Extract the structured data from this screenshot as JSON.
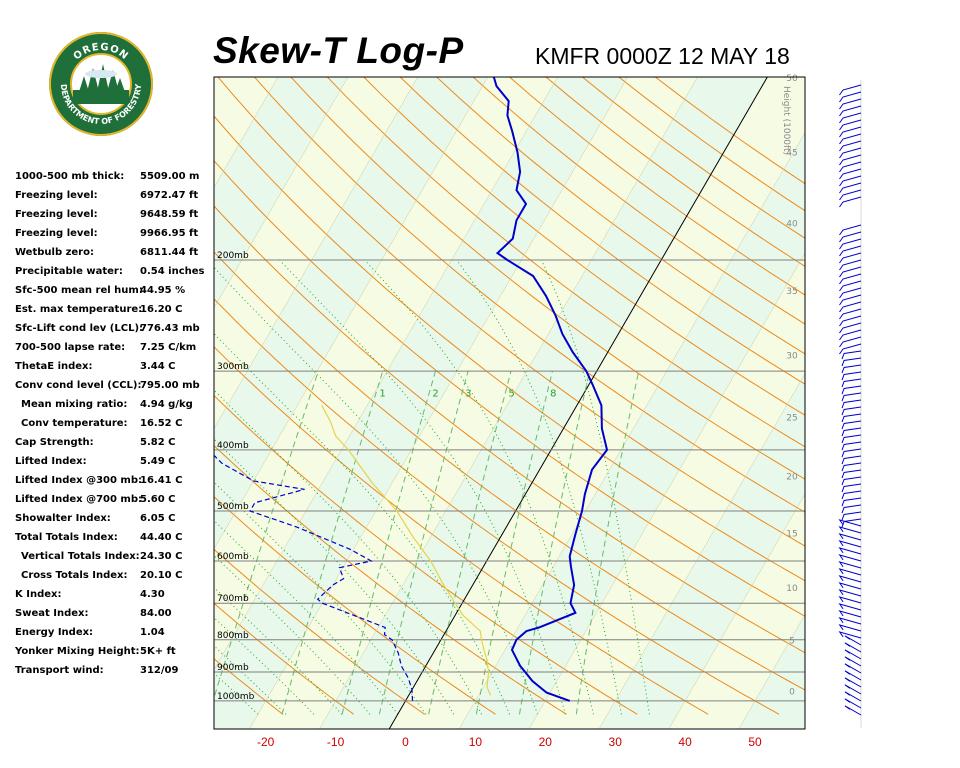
{
  "header": {
    "title": "Skew-T Log-P",
    "station_time": "KMFR 0000Z 12 MAY 18"
  },
  "logo": {
    "text_top": "OREGON",
    "text_bottom": "DEPARTMENT OF FORESTRY",
    "ring_color": "#1f6f3a",
    "accent_color": "#e3b52a"
  },
  "stats": [
    {
      "label": "1000-500 mb thick:",
      "value": "5509.00 m"
    },
    {
      "label": "Freezing level:",
      "value": "6972.47 ft"
    },
    {
      "label": "Freezing level:",
      "value": "9648.59 ft"
    },
    {
      "label": "Freezing level:",
      "value": "9966.95 ft"
    },
    {
      "label": "Wetbulb zero:",
      "value": "6811.44 ft"
    },
    {
      "label": "Precipitable water:",
      "value": "0.54 inches"
    },
    {
      "label": "Sfc-500 mean rel hum:",
      "value": "44.95 %"
    },
    {
      "label": "Est. max temperature:",
      "value": "16.20 C"
    },
    {
      "label": "Sfc-Lift cond lev (LCL):",
      "value": "776.43 mb"
    },
    {
      "label": "700-500 lapse rate:",
      "value": "7.25 C/km"
    },
    {
      "label": "ThetaE index:",
      "value": "3.44 C"
    },
    {
      "label": "Conv cond level (CCL):",
      "value": "795.00 mb"
    },
    {
      "label": "Mean mixing ratio:",
      "value": "4.94 g/kg",
      "indent": true
    },
    {
      "label": "Conv temperature:",
      "value": "16.52 C",
      "indent": true
    },
    {
      "label": "Cap Strength:",
      "value": "5.82 C"
    },
    {
      "label": "Lifted Index:",
      "value": "5.49 C"
    },
    {
      "label": "Lifted Index @300 mb:",
      "value": "16.41 C"
    },
    {
      "label": "Lifted Index @700 mb:",
      "value": "5.60 C"
    },
    {
      "label": "Showalter Index:",
      "value": "6.05 C"
    },
    {
      "label": "Total Totals Index:",
      "value": "44.40 C"
    },
    {
      "label": "Vertical Totals Index:",
      "value": "24.30 C",
      "indent": true
    },
    {
      "label": "Cross Totals Index:",
      "value": "20.10 C",
      "indent": true
    },
    {
      "label": "K Index:",
      "value": "4.30"
    },
    {
      "label": "Sweat Index:",
      "value": "84.00"
    },
    {
      "label": "Energy Index:",
      "value": "1.04"
    },
    {
      "label": "Yonker Mixing Height:",
      "value": "5K+ ft"
    },
    {
      "label": "Transport wind:",
      "value": "312/09"
    }
  ],
  "chart_data": {
    "type": "line",
    "title": "Skew-T Log-P",
    "xlabel": "",
    "ylabel": "",
    "x_ticks": [
      "-20",
      "-10",
      "0",
      "10",
      "20",
      "30",
      "40",
      "50"
    ],
    "x_tick_values": [
      -20,
      -10,
      0,
      10,
      20,
      30,
      40,
      50
    ],
    "xlim": [
      -27,
      56
    ],
    "ylim_mb": [
      1050,
      100
    ],
    "y_scale": "log",
    "pressure_levels": [
      1000,
      900,
      800,
      700,
      600,
      500,
      400,
      300,
      200
    ],
    "pressure_labels": [
      "1000mb",
      "900mb",
      "800mb",
      "700mb",
      "600mb",
      "500mb",
      "400mb",
      "300mb",
      "200mb"
    ],
    "height_axis_title": "Height (1000ft)",
    "height_ticks": [
      "0",
      "5",
      "10",
      "15",
      "20",
      "25",
      "30",
      "35",
      "40",
      "45",
      "50"
    ],
    "mixing_ratio_labels": [
      "1",
      "2",
      "3",
      "5",
      "8"
    ],
    "series": [
      {
        "color": "#0000cc",
        "style": "solid",
        "points": [
          [
            1000,
            23.5
          ],
          [
            970,
            19.5
          ],
          [
            930,
            16.5
          ],
          [
            880,
            13.5
          ],
          [
            830,
            11.0
          ],
          [
            800,
            10.8
          ],
          [
            775,
            11.5
          ],
          [
            765,
            13.0
          ],
          [
            725,
            17.0
          ],
          [
            700,
            15.5
          ],
          [
            655,
            14.5
          ],
          [
            612,
            12.5
          ],
          [
            590,
            11.5
          ],
          [
            545,
            10.5
          ],
          [
            500,
            9.5
          ],
          [
            470,
            8.5
          ],
          [
            430,
            7.5
          ],
          [
            400,
            8.0
          ],
          [
            370,
            5.5
          ],
          [
            340,
            3.5
          ],
          [
            315,
            0.5
          ],
          [
            300,
            -1.5
          ],
          [
            280,
            -5.0
          ],
          [
            262,
            -8.0
          ],
          [
            245,
            -10.5
          ],
          [
            228,
            -13.5
          ],
          [
            212,
            -17.0
          ],
          [
            200,
            -22.0
          ],
          [
            195,
            -24.0
          ],
          [
            185,
            -23.0
          ],
          [
            173,
            -24.0
          ],
          [
            163,
            -24.0
          ],
          [
            155,
            -26.5
          ],
          [
            145,
            -27.5
          ],
          [
            135,
            -29.5
          ],
          [
            125,
            -32.0
          ],
          [
            118,
            -34.0
          ],
          [
            112,
            -35.0
          ],
          [
            106,
            -38.0
          ],
          [
            100,
            -40.0
          ]
        ]
      },
      {
        "color": "#0000cc",
        "style": "dashed",
        "points": [
          [
            1000,
            1.0
          ],
          [
            960,
            0.0
          ],
          [
            920,
            -1.5
          ],
          [
            880,
            -3.5
          ],
          [
            840,
            -5.0
          ],
          [
            800,
            -7.0
          ],
          [
            785,
            -8.5
          ],
          [
            765,
            -9.0
          ],
          [
            700,
            -20.0
          ],
          [
            690,
            -21.0
          ],
          [
            655,
            -20.0
          ],
          [
            640,
            -19.0
          ],
          [
            615,
            -20.5
          ],
          [
            600,
            -16.5
          ],
          [
            575,
            -20.5
          ],
          [
            530,
            -30.0
          ],
          [
            500,
            -38.0
          ],
          [
            485,
            -38.0
          ],
          [
            462,
            -32.0
          ],
          [
            448,
            -40.0
          ],
          [
            420,
            -46.0
          ],
          [
            400,
            -49.0
          ],
          [
            375,
            -52.0
          ],
          [
            345,
            -54.0
          ],
          [
            325,
            -56.0
          ],
          [
            300,
            -57.0
          ],
          [
            280,
            -59.5
          ],
          [
            265,
            -61.0
          ],
          [
            245,
            -63.0
          ],
          [
            230,
            -65.0
          ],
          [
            212,
            -68.0
          ],
          [
            200,
            -70.0
          ],
          [
            195,
            -67.0
          ],
          [
            185,
            -74.0
          ],
          [
            173,
            -77.0
          ],
          [
            163,
            -78.0
          ],
          [
            150,
            -78.0
          ],
          [
            140,
            -79.0
          ],
          [
            125,
            -79.0
          ],
          [
            112,
            -82.0
          ],
          [
            100,
            -85.0
          ]
        ]
      },
      {
        "color": "#e6d34a",
        "style": "solid",
        "points": [
          [
            980,
            11.7
          ],
          [
            950,
            10.5
          ],
          [
            900,
            9.5
          ],
          [
            860,
            8.2
          ],
          [
            830,
            7.0
          ],
          [
            800,
            5.8
          ],
          [
            775,
            4.9
          ],
          [
            760,
            3.6
          ],
          [
            730,
            1.0
          ],
          [
            700,
            -1.0
          ],
          [
            650,
            -4.5
          ],
          [
            600,
            -8.0
          ],
          [
            550,
            -12.5
          ],
          [
            500,
            -17.0
          ],
          [
            450,
            -23.0
          ],
          [
            400,
            -29.0
          ],
          [
            380,
            -32.0
          ],
          [
            360,
            -34.0
          ],
          [
            340,
            -36.5
          ]
        ]
      }
    ]
  },
  "wind_profile": {
    "color": "#0000cc"
  }
}
